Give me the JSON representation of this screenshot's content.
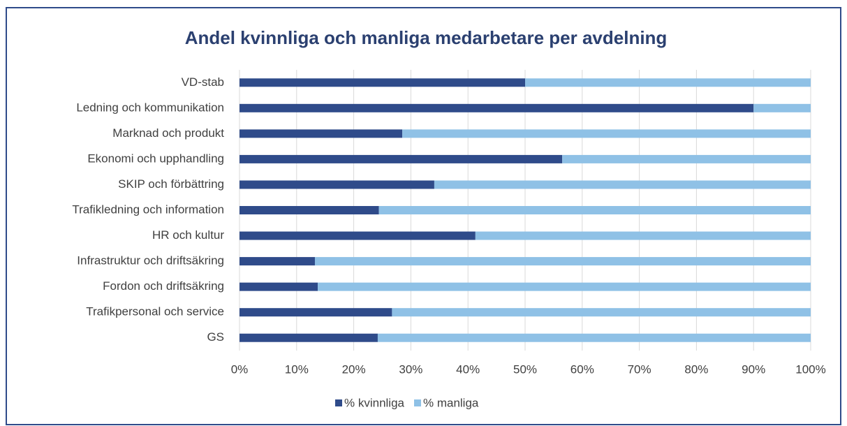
{
  "chart_data": {
    "type": "stacked_barh",
    "title": "Andel kvinnliga och manliga medarbetare per avdelning",
    "categories": [
      "VD-stab",
      "Ledning och kommunikation",
      "Marknad och produkt",
      "Ekonomi och upphandling",
      "SKIP och förbättring",
      "Trafikledning och information",
      "HR och kultur",
      "Infrastruktur och driftsäkring",
      "Fordon och driftsäkring",
      "Trafikpersonal och service",
      "GS"
    ],
    "series": [
      {
        "name": "% kvinnliga",
        "color": "#2f4b8a",
        "values": [
          50,
          90,
          28.5,
          56.5,
          34.1,
          24.4,
          41.3,
          13.2,
          13.7,
          26.7,
          24.2
        ]
      },
      {
        "name": "% manliga",
        "color": "#8fc1e6",
        "values": [
          50,
          10,
          71.5,
          43.5,
          65.9,
          75.6,
          58.7,
          86.8,
          86.3,
          73.3,
          75.8
        ]
      }
    ],
    "xlim": [
      0,
      100
    ],
    "xticks": [
      {
        "value": 0,
        "label": "0%"
      },
      {
        "value": 10,
        "label": "10%"
      },
      {
        "value": 20,
        "label": "20%"
      },
      {
        "value": 30,
        "label": "30%"
      },
      {
        "value": 40,
        "label": "40%"
      },
      {
        "value": 50,
        "label": "50%"
      },
      {
        "value": 60,
        "label": "60%"
      },
      {
        "value": 70,
        "label": "70%"
      },
      {
        "value": 80,
        "label": "80%"
      },
      {
        "value": 90,
        "label": "90%"
      },
      {
        "value": 100,
        "label": "100%"
      }
    ],
    "grid": true,
    "legend": "bottom"
  }
}
